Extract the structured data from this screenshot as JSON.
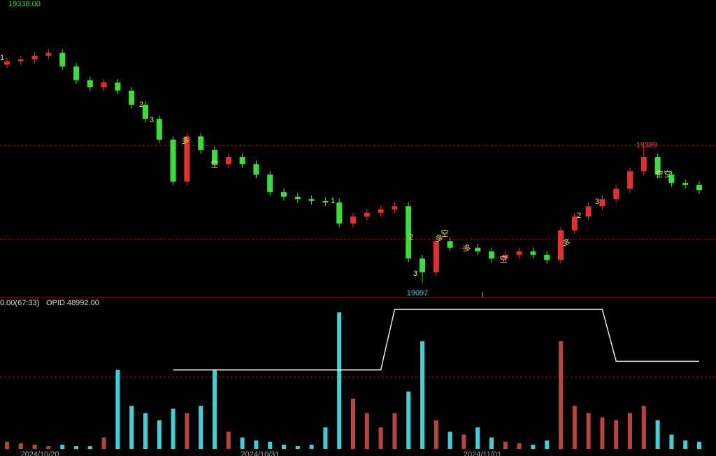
{
  "chart_data": {
    "type": "candlestick",
    "price_label": "19338.00",
    "indicator_label": "0.00(67:33)",
    "opid_label": "OPID 48992.00",
    "high_label": "19389",
    "low_label": "19097",
    "dates": [
      "2024/10/20",
      "2024/10/31",
      "2024/11/01"
    ],
    "annotations": [
      "1",
      "2",
      "3",
      "多",
      "空",
      "1",
      "2",
      "3",
      "多",
      "空",
      "多",
      "空",
      "多",
      "2",
      "3",
      "空",
      "空"
    ],
    "up_color": "#e03030",
    "down_color": "#3ddc3d",
    "vol_up_color": "#b8443c",
    "vol_down_color": "#3fcfd6",
    "open": [
      19560,
      19567,
      19571,
      19579,
      19585,
      19556,
      19527,
      19512,
      19522,
      19505,
      19475,
      19445,
      19401,
      19312,
      19408,
      19379,
      19349,
      19364,
      19349,
      19327,
      19290,
      19280,
      19275,
      19271,
      19268,
      19223,
      19238,
      19246,
      19253,
      19260,
      19149,
      19120,
      19186,
      19172,
      19172,
      19164,
      19149,
      19157,
      19164,
      19157,
      19146,
      19209,
      19238,
      19260,
      19275,
      19297,
      19334,
      19364,
      19327,
      19309,
      19305
    ],
    "high": [
      19575,
      19579,
      19587,
      19593,
      19593,
      19564,
      19535,
      19530,
      19530,
      19513,
      19483,
      19453,
      19409,
      19416,
      19416,
      19387,
      19372,
      19372,
      19357,
      19335,
      19298,
      19288,
      19283,
      19279,
      19276,
      19246,
      19254,
      19261,
      19268,
      19268,
      19157,
      19194,
      19194,
      19180,
      19180,
      19172,
      19165,
      19172,
      19172,
      19165,
      19217,
      19246,
      19268,
      19283,
      19305,
      19342,
      19389,
      19372,
      19335,
      19317,
      19313
    ],
    "low": [
      19552,
      19559,
      19563,
      19571,
      19548,
      19519,
      19504,
      19504,
      19497,
      19467,
      19437,
      19393,
      19304,
      19304,
      19371,
      19341,
      19341,
      19341,
      19319,
      19282,
      19272,
      19267,
      19263,
      19260,
      19215,
      19215,
      19230,
      19238,
      19245,
      19141,
      19097,
      19112,
      19164,
      19164,
      19156,
      19141,
      19141,
      19149,
      19149,
      19138,
      19138,
      19201,
      19230,
      19252,
      19267,
      19289,
      19326,
      19319,
      19301,
      19297,
      19286
    ],
    "close": [
      19567,
      19571,
      19579,
      19585,
      19556,
      19527,
      19512,
      19522,
      19505,
      19475,
      19445,
      19401,
      19312,
      19408,
      19379,
      19349,
      19364,
      19349,
      19327,
      19290,
      19280,
      19275,
      19271,
      19268,
      19223,
      19238,
      19246,
      19253,
      19260,
      19149,
      19120,
      19186,
      19172,
      19172,
      19164,
      19149,
      19157,
      19164,
      19157,
      19146,
      19209,
      19238,
      19260,
      19275,
      19297,
      19334,
      19364,
      19327,
      19309,
      19305,
      19294
    ],
    "volume": [
      5,
      4,
      3,
      2,
      3,
      2,
      2,
      8,
      55,
      30,
      25,
      20,
      28,
      25,
      30,
      55,
      12,
      8,
      6,
      5,
      3,
      2,
      3,
      15,
      95,
      35,
      25,
      15,
      25,
      40,
      75,
      20,
      12,
      10,
      15,
      8,
      5,
      4,
      3,
      6,
      75,
      30,
      25,
      22,
      20,
      25,
      30,
      20,
      10,
      6,
      5
    ],
    "opid": [
      null,
      null,
      null,
      null,
      null,
      null,
      null,
      null,
      null,
      null,
      null,
      null,
      55,
      55,
      55,
      55,
      55,
      55,
      55,
      55,
      55,
      55,
      55,
      55,
      55,
      55,
      55,
      55,
      97,
      97,
      97,
      97,
      97,
      97,
      97,
      97,
      97,
      97,
      97,
      97,
      97,
      97,
      97,
      97,
      61,
      61,
      61,
      61,
      61,
      61,
      61
    ],
    "ylim": [
      19068,
      19697
    ],
    "vol_ylim": [
      0,
      100
    ],
    "ref_lines": [
      19389,
      19190
    ],
    "vol_ref_line": 50
  }
}
